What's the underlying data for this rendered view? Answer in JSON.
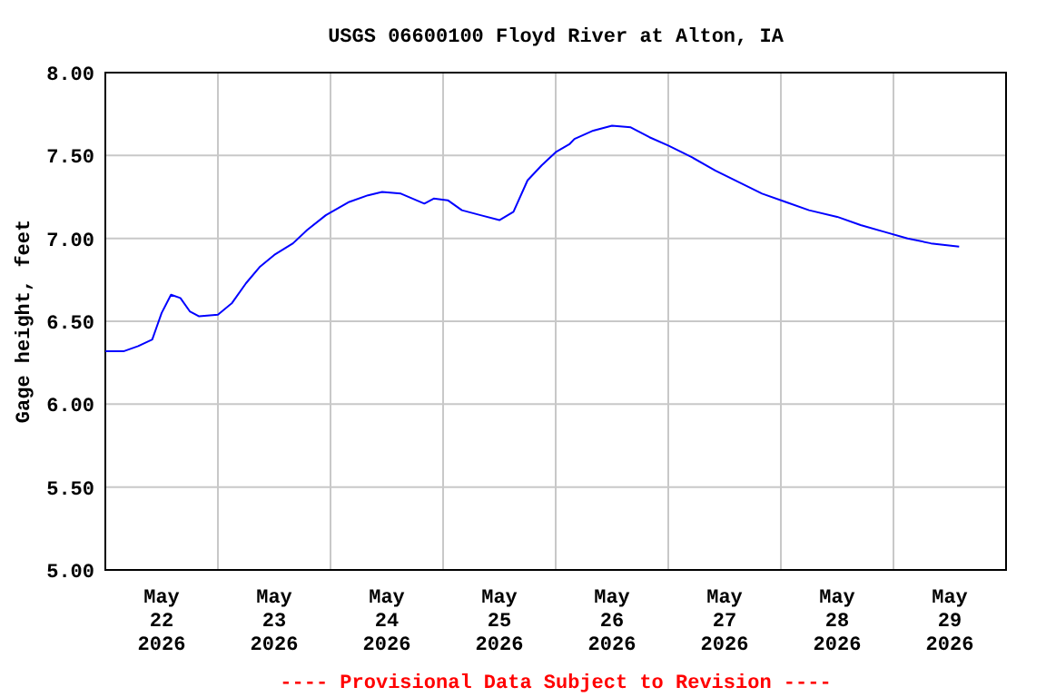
{
  "chart_data": {
    "type": "line",
    "title": "USGS 06600100 Floyd River at Alton, IA",
    "ylabel": "Gage height, feet",
    "annotations": [
      "---- Provisional Data Subject to Revision ----"
    ],
    "x": [
      "2026-05-22T00:00",
      "2026-05-22T04:00",
      "2026-05-22T07:00",
      "2026-05-22T10:00",
      "2026-05-22T11:00",
      "2026-05-22T12:00",
      "2026-05-22T14:00",
      "2026-05-22T16:00",
      "2026-05-22T18:00",
      "2026-05-22T20:00",
      "2026-05-23T00:00",
      "2026-05-23T03:00",
      "2026-05-23T06:00",
      "2026-05-23T09:00",
      "2026-05-23T12:00",
      "2026-05-23T16:00",
      "2026-05-23T19:00",
      "2026-05-23T23:00",
      "2026-05-24T04:00",
      "2026-05-24T08:00",
      "2026-05-24T11:00",
      "2026-05-24T15:00",
      "2026-05-24T20:00",
      "2026-05-24T22:00",
      "2026-05-25T01:00",
      "2026-05-25T04:00",
      "2026-05-25T08:00",
      "2026-05-25T12:00",
      "2026-05-25T15:00",
      "2026-05-25T18:00",
      "2026-05-25T21:00",
      "2026-05-26T00:00",
      "2026-05-26T03:00",
      "2026-05-26T04:00",
      "2026-05-26T08:00",
      "2026-05-26T12:00",
      "2026-05-26T16:00",
      "2026-05-26T20:00",
      "2026-05-27T00:00",
      "2026-05-27T05:00",
      "2026-05-27T10:00",
      "2026-05-27T15:00",
      "2026-05-27T20:00",
      "2026-05-28T01:00",
      "2026-05-28T06:00",
      "2026-05-28T12:00",
      "2026-05-28T17:00",
      "2026-05-28T22:00",
      "2026-05-29T03:00",
      "2026-05-29T08:00",
      "2026-05-29T14:00"
    ],
    "series": [
      {
        "color": "#0000ff",
        "values": [
          6.32,
          6.32,
          6.35,
          6.39,
          6.47,
          6.55,
          6.66,
          6.64,
          6.56,
          6.53,
          6.54,
          6.61,
          6.73,
          6.83,
          6.9,
          6.97,
          7.05,
          7.14,
          7.22,
          7.26,
          7.28,
          7.27,
          7.21,
          7.24,
          7.23,
          7.17,
          7.14,
          7.11,
          7.16,
          7.35,
          7.44,
          7.52,
          7.57,
          7.6,
          7.65,
          7.68,
          7.67,
          7.61,
          7.56,
          7.49,
          7.41,
          7.34,
          7.27,
          7.22,
          7.17,
          7.13,
          7.08,
          7.04,
          7.0,
          6.97,
          6.95
        ]
      }
    ],
    "xlim": [
      "2026-05-22T00:00",
      "2026-05-30T00:00"
    ],
    "xticks": [
      {
        "value": "2026-05-22T12:00",
        "label": "May\n22\n2026"
      },
      {
        "value": "2026-05-23T00:00",
        "label": null
      },
      {
        "value": "2026-05-23T12:00",
        "label": "May\n23\n2026"
      },
      {
        "value": "2026-05-24T00:00",
        "label": null
      },
      {
        "value": "2026-05-24T12:00",
        "label": "May\n24\n2026"
      },
      {
        "value": "2026-05-25T00:00",
        "label": null
      },
      {
        "value": "2026-05-25T12:00",
        "label": "May\n25\n2026"
      },
      {
        "value": "2026-05-26T00:00",
        "label": null
      },
      {
        "value": "2026-05-26T12:00",
        "label": "May\n26\n2026"
      },
      {
        "value": "2026-05-27T00:00",
        "label": null
      },
      {
        "value": "2026-05-27T12:00",
        "label": "May\n27\n2026"
      },
      {
        "value": "2026-05-28T00:00",
        "label": null
      },
      {
        "value": "2026-05-28T12:00",
        "label": "May\n28\n2026"
      },
      {
        "value": "2026-05-29T00:00",
        "label": null
      },
      {
        "value": "2026-05-29T12:00",
        "label": "May\n29\n2026"
      }
    ],
    "ylim": [
      5,
      8
    ],
    "yticks": [
      {
        "value": 5,
        "label": "5.00"
      },
      {
        "value": 5.5,
        "label": "5.50"
      },
      {
        "value": 6,
        "label": "6.00"
      },
      {
        "value": 6.5,
        "label": "6.50"
      },
      {
        "value": 7,
        "label": "7.00"
      },
      {
        "value": 7.5,
        "label": "7.50"
      },
      {
        "value": 8,
        "label": "8.00"
      }
    ],
    "grid": true,
    "marker": "none",
    "line_style": "solid"
  }
}
